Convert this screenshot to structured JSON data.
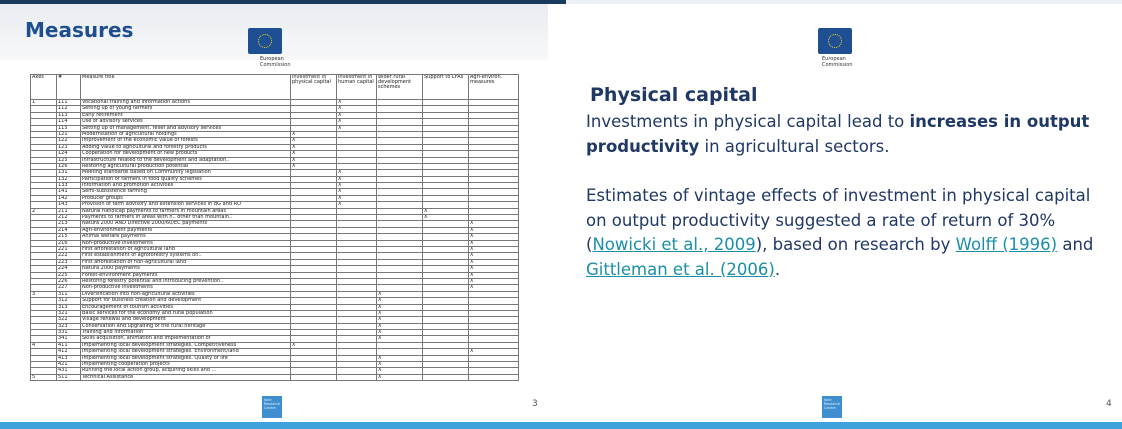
{
  "slide_left": {
    "title": "Measures",
    "logo_caption": "European Commission",
    "footer_logo": "Joint Research Centre",
    "page_number": "3",
    "table": {
      "header": [
        "Axes",
        "#",
        "Measure title",
        "investment in physical capital",
        "investment in human capital",
        "wider rural development schemes",
        "Support to LFAs",
        "Agri-environ. measures"
      ],
      "rows": [
        {
          "axis": "1",
          "code": "111",
          "title": "Vocational training and information actions",
          "human": "X"
        },
        {
          "code": "112",
          "title": "Setting up of young farmers",
          "human": "X"
        },
        {
          "code": "113",
          "title": "Early retirement",
          "human": "X"
        },
        {
          "code": "114",
          "title": "Use of advisory services",
          "human": "X"
        },
        {
          "code": "115",
          "title": "Setting up of management, relief and advisory services",
          "human": "X"
        },
        {
          "code": "121",
          "title": "Modernisation of agricultural holdings",
          "physical": "X"
        },
        {
          "code": "122",
          "title": "Improvement of the economic value of forests",
          "physical": "X"
        },
        {
          "code": "123",
          "title": "Adding value to agricultural and forestry products",
          "physical": "X"
        },
        {
          "code": "124",
          "title": "Cooperation for development of new products",
          "physical": "X"
        },
        {
          "code": "125",
          "title": "Infrastructure related to the development and adaptation..",
          "physical": "X"
        },
        {
          "code": "126",
          "title": "Restoring agricultural production potential",
          "physical": "X"
        },
        {
          "code": "131",
          "title": "Meeting standards based on Community legislation",
          "human": "X"
        },
        {
          "code": "132",
          "title": "Participation of farmers in food quality schemes",
          "human": "X"
        },
        {
          "code": "133",
          "title": "Information and promotion activities",
          "human": "X"
        },
        {
          "code": "141",
          "title": "Semi-subsistence farming",
          "human": "X"
        },
        {
          "code": "142",
          "title": "Producer groups",
          "human": "X"
        },
        {
          "code": "143",
          "title": "Provision of farm advisory and extension services in BG and RO",
          "human": "X"
        },
        {
          "axis": "2",
          "code": "211",
          "title": "Natural handicap payments to farmers in mountain areas",
          "lfa": "X"
        },
        {
          "code": "212",
          "title": "Payments to farmers in areas with h.. other than mountain..",
          "lfa": "X"
        },
        {
          "code": "213",
          "title": "Natura 2000 AND Directive 2000/60/EC payments",
          "agri": "X"
        },
        {
          "code": "214",
          "title": "Agri-environment payments",
          "agri": "X"
        },
        {
          "code": "215",
          "title": "Animal welfare payments",
          "agri": "X"
        },
        {
          "code": "216",
          "title": "Non-productive investments",
          "agri": "X"
        },
        {
          "code": "221",
          "title": "First afforestation of agricultural land",
          "agri": "X"
        },
        {
          "code": "222",
          "title": "First establishment of agroforestry systems on..",
          "agri": "X"
        },
        {
          "code": "223",
          "title": "First afforestation of non-agricultural land",
          "agri": "X"
        },
        {
          "code": "224",
          "title": "Natura 2000 payments",
          "agri": "X"
        },
        {
          "code": "225",
          "title": "Forest-environment payments",
          "agri": "X"
        },
        {
          "code": "226",
          "title": "Restoring forestry potential and introducing prevention..",
          "agri": "X"
        },
        {
          "code": "227",
          "title": "Non-productive investments",
          "agri": "X"
        },
        {
          "axis": "3",
          "code": "311",
          "title": "Diversification into non-agricultural activities",
          "wider": "X"
        },
        {
          "code": "312",
          "title": "Support for business creation and development",
          "wider": "X"
        },
        {
          "code": "313",
          "title": "Encouragement of tourism activities",
          "wider": "X"
        },
        {
          "code": "321",
          "title": "Basic services for the economy and rural population",
          "wider": "X"
        },
        {
          "code": "322",
          "title": "Village renewal and development",
          "wider": "X"
        },
        {
          "code": "323",
          "title": "Conservation and upgrading of the rural heritage",
          "wider": "X"
        },
        {
          "code": "331",
          "title": "Training and information",
          "wider": "X"
        },
        {
          "code": "341",
          "title": "Skills acquisition, animation and implementation of",
          "wider": "X"
        },
        {
          "axis": "4",
          "code": "411",
          "title": "Implementing local development strategies. Competitiveness",
          "physical": "X"
        },
        {
          "code": "412",
          "title": "Implementing local development strategies. Environment/land",
          "agri": "X"
        },
        {
          "code": "413",
          "title": "Implementing local development strategies. Quality of life",
          "wider": "X"
        },
        {
          "code": "421",
          "title": "Implementing cooperation projects",
          "wider": "X"
        },
        {
          "code": "431",
          "title": "Running the local action group, acquiring skills and ...",
          "wider": "X"
        },
        {
          "axis": "5",
          "code": "511",
          "title": "Technical Assistance",
          "wider": "X"
        }
      ]
    }
  },
  "slide_right": {
    "logo_caption": "European Commission",
    "footer_logo": "Joint Research Centre",
    "page_number": "4",
    "heading": "Physical capital",
    "paragraphs": [
      [
        {
          "text": "Investments in physical capital lead to "
        },
        {
          "text": "increases in output productivity",
          "bold": true
        },
        {
          "text": " in agricultural sectors."
        }
      ],
      [
        {
          "text": "Estimates of vintage effects of investment in physical capital on output productivity suggested a rate of return of 30% ("
        },
        {
          "text": "Nowicki et al., 2009",
          "link": true
        },
        {
          "text": "), based on research by "
        },
        {
          "text": "Wolff (1996)",
          "link": true
        },
        {
          "text": " and "
        },
        {
          "text": "Gittleman et al. (2006)",
          "link": true
        },
        {
          "text": "."
        }
      ]
    ]
  }
}
